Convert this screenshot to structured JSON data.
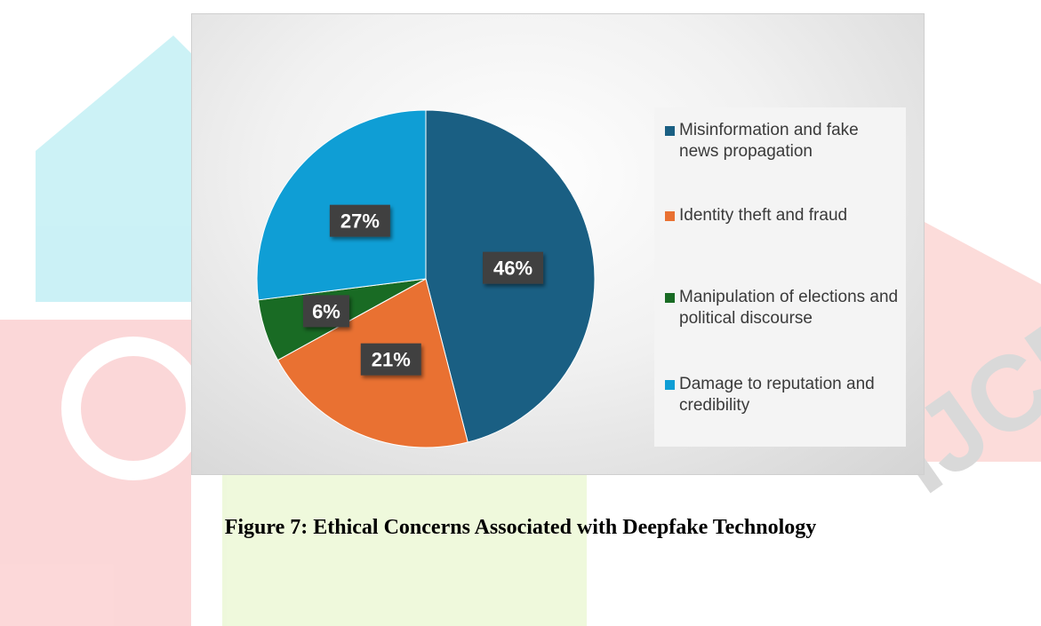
{
  "caption": "Figure 7: Ethical Concerns Associated with Deepfake Technology",
  "watermark": {
    "text": "IJCRT"
  },
  "chart_data": {
    "type": "pie",
    "legend_position": "right",
    "slices": [
      {
        "label": "Misinformation and fake news propagation",
        "value": 46,
        "display": "46%",
        "color": "#1a5f83"
      },
      {
        "label": "Identity theft and fraud",
        "value": 21,
        "display": "21%",
        "color": "#e97132"
      },
      {
        "label": "Manipulation of elections and political discourse",
        "value": 6,
        "display": "6%",
        "color": "#196b24"
      },
      {
        "label": "Damage to reputation and credibility",
        "value": 27,
        "display": "27%",
        "color": "#0f9ed5"
      }
    ]
  }
}
